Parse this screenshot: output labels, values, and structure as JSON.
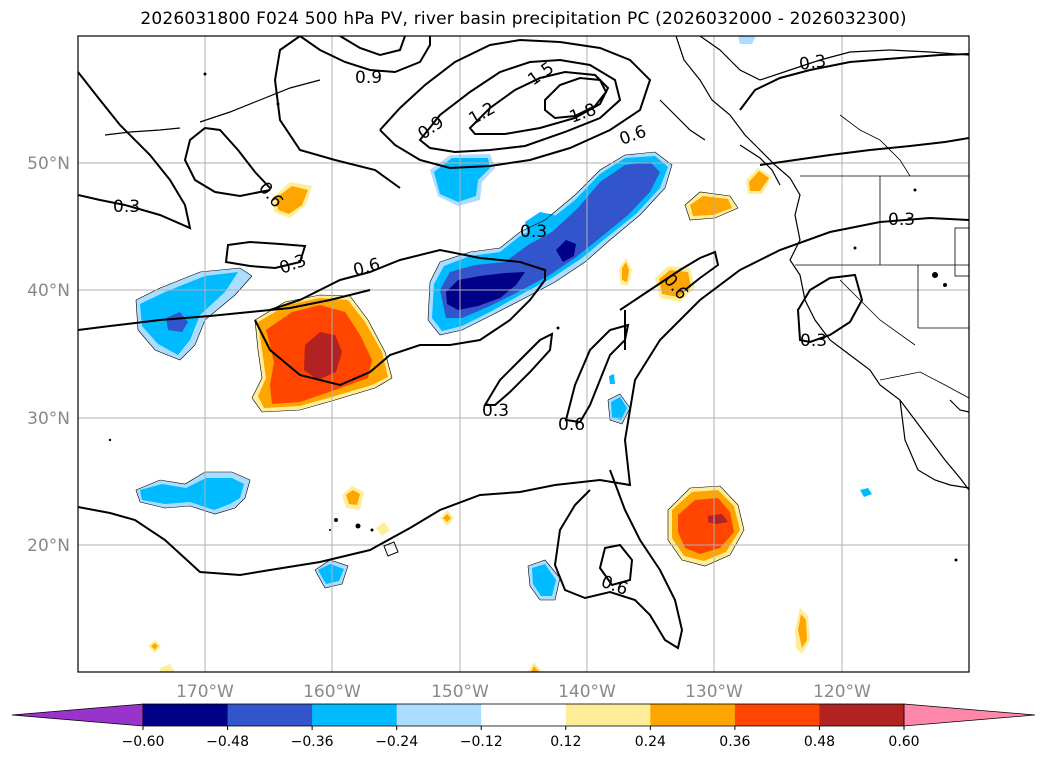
{
  "title": "2026031800 F024 500 hPa PV, river basin precipitation PC (2026032000 - 2026032300)",
  "lon_labels": [
    "170°W",
    "160°W",
    "150°W",
    "140°W",
    "130°W",
    "120°W"
  ],
  "lat_labels": [
    "50°N",
    "40°N",
    "30°N",
    "20°N"
  ],
  "contour_labels": [
    "0.3",
    "0.6",
    "0.9",
    "1.2",
    "1.5",
    "1.8"
  ],
  "colorbar": {
    "ticks": [
      "−0.60",
      "−0.48",
      "−0.36",
      "−0.24",
      "−0.12",
      "0.12",
      "0.24",
      "0.36",
      "0.48",
      "0.60"
    ],
    "colors": [
      "#9933cc",
      "#000088",
      "#3355cc",
      "#00bbff",
      "#aaddff",
      "#ffffff",
      "#ffee99",
      "#ffa500",
      "#ff4500",
      "#b22222",
      "#ff88aa"
    ]
  }
}
